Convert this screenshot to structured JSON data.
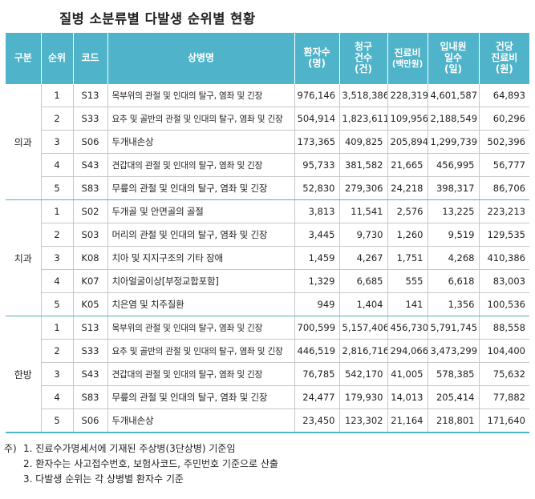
{
  "title": "질병 소분류별 다발생 순위별 현황",
  "headers": {
    "group": "구분",
    "rank": "순위",
    "code": "코드",
    "name": "상병명",
    "patients": [
      "환자수",
      "(명)"
    ],
    "claims": [
      "청구",
      "건수",
      "(건)"
    ],
    "fee": [
      "진료비",
      "(백만원)"
    ],
    "days": [
      "입내원",
      "일수",
      "(일)"
    ],
    "per_case": [
      "건당",
      "진료비",
      "(원)"
    ]
  },
  "groups": [
    {
      "label": "의과",
      "rows": [
        {
          "rank": "1",
          "code": "S13",
          "name": "목부위의 관절 및 인대의 탈구, 염좌 및 긴장",
          "patients": "976,146",
          "claims": "3,518,386",
          "fee": "228,319",
          "days": "4,601,587",
          "per_case": "64,893"
        },
        {
          "rank": "2",
          "code": "S33",
          "name": "요추 및 골반의 관절 및 인대의 탈구, 염좌 및 긴장",
          "patients": "504,914",
          "claims": "1,823,611",
          "fee": "109,956",
          "days": "2,188,549",
          "per_case": "60,296"
        },
        {
          "rank": "3",
          "code": "S06",
          "name": "두개내손상",
          "patients": "173,365",
          "claims": "409,825",
          "fee": "205,894",
          "days": "1,299,739",
          "per_case": "502,396"
        },
        {
          "rank": "4",
          "code": "S43",
          "name": "견갑대의 관절 및 인대의 탈구, 염좌 및 긴장",
          "patients": "95,733",
          "claims": "381,582",
          "fee": "21,665",
          "days": "456,995",
          "per_case": "56,777"
        },
        {
          "rank": "5",
          "code": "S83",
          "name": "무릎의 관절 및 인대의 탈구, 염좌 및 긴장",
          "patients": "52,830",
          "claims": "279,306",
          "fee": "24,218",
          "days": "398,317",
          "per_case": "86,706"
        }
      ]
    },
    {
      "label": "치과",
      "rows": [
        {
          "rank": "1",
          "code": "S02",
          "name": "두개골 및 안면골의 골절",
          "patients": "3,813",
          "claims": "11,541",
          "fee": "2,576",
          "days": "13,225",
          "per_case": "223,213"
        },
        {
          "rank": "2",
          "code": "S03",
          "name": "머리의 관절 및 인대의 탈구, 염좌 및 긴장",
          "patients": "3,445",
          "claims": "9,730",
          "fee": "1,260",
          "days": "9,519",
          "per_case": "129,535"
        },
        {
          "rank": "3",
          "code": "K08",
          "name": "치아 및 지지구조의 기타 장애",
          "patients": "1,459",
          "claims": "4,267",
          "fee": "1,751",
          "days": "4,268",
          "per_case": "410,386"
        },
        {
          "rank": "4",
          "code": "K07",
          "name": "치아얼굴이상[부정교합포함]",
          "patients": "1,329",
          "claims": "6,685",
          "fee": "555",
          "days": "6,618",
          "per_case": "83,003"
        },
        {
          "rank": "5",
          "code": "K05",
          "name": "치은염 및 치주질환",
          "patients": "949",
          "claims": "1,404",
          "fee": "141",
          "days": "1,356",
          "per_case": "100,536"
        }
      ]
    },
    {
      "label": "한방",
      "rows": [
        {
          "rank": "1",
          "code": "S13",
          "name": "목부위의 관절 및 인대의 탈구, 염좌 및 긴장",
          "patients": "700,599",
          "claims": "5,157,406",
          "fee": "456,730",
          "days": "5,791,745",
          "per_case": "88,558"
        },
        {
          "rank": "2",
          "code": "S33",
          "name": "요추 및 골반의 관절 및 인대의 탈구, 염좌 및 긴장",
          "patients": "446,519",
          "claims": "2,816,716",
          "fee": "294,066",
          "days": "3,473,299",
          "per_case": "104,400"
        },
        {
          "rank": "3",
          "code": "S43",
          "name": "견갑대의 관절 및 인대의 탈구, 염좌 및 긴장",
          "patients": "76,785",
          "claims": "542,170",
          "fee": "41,005",
          "days": "578,385",
          "per_case": "75,632"
        },
        {
          "rank": "4",
          "code": "S83",
          "name": "무릎의 관절 및 인대의 탈구, 염좌 및 긴장",
          "patients": "24,477",
          "claims": "179,930",
          "fee": "14,013",
          "days": "205,414",
          "per_case": "77,882"
        },
        {
          "rank": "5",
          "code": "S06",
          "name": "두개내손상",
          "patients": "23,450",
          "claims": "123,302",
          "fee": "21,164",
          "days": "218,801",
          "per_case": "171,640"
        }
      ]
    }
  ],
  "notes": {
    "prefix": "주)",
    "items": [
      "1. 진료수가명세서에 기재된 주상병(3단상병) 기준임",
      "2. 환자수는 사고접수번호, 보험사코드, 주민번호 기준으로 산출",
      "3. 다발생 순위는 각 상병별 환자수 기준"
    ]
  },
  "colors": {
    "header_bg": "#4fb3c9",
    "header_text": "#ffffff",
    "rule": "#c7c7c7"
  }
}
